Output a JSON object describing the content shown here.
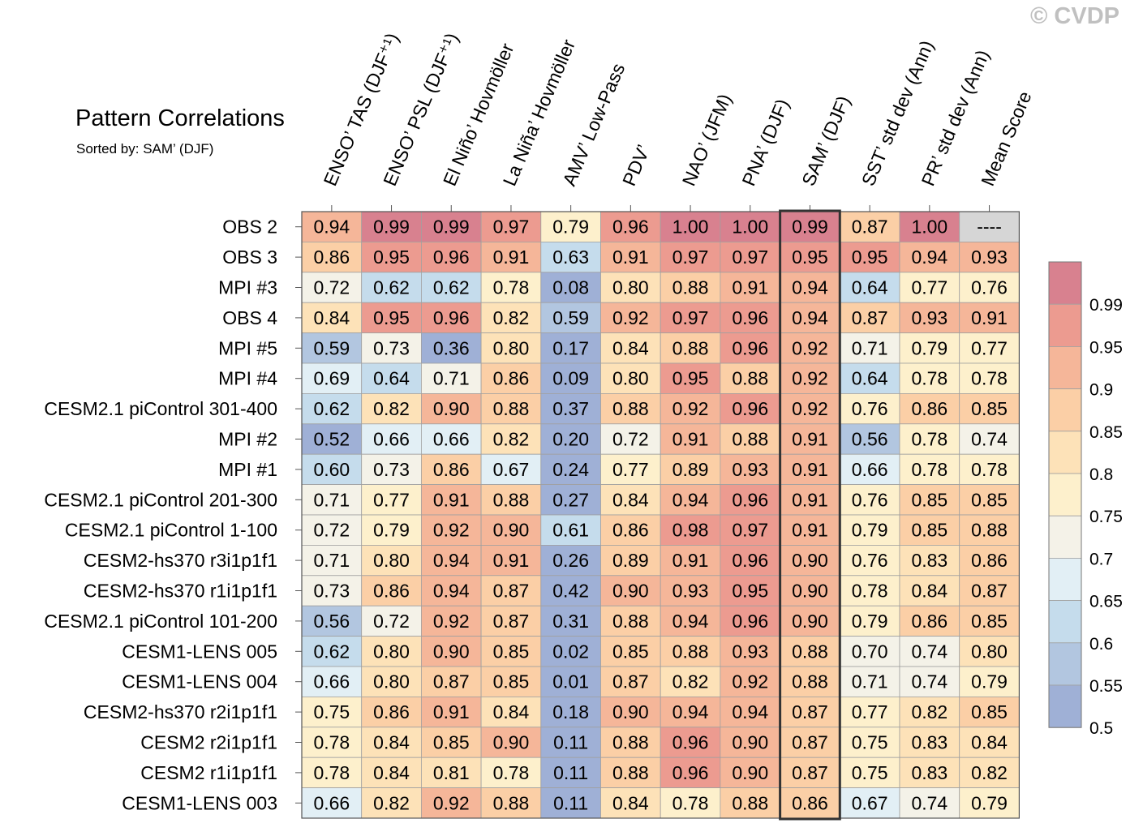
{
  "title": "Pattern Correlations",
  "subtitle": "Sorted by: SAM’ (DJF)",
  "watermark": "© CVDP",
  "chart_data": {
    "type": "heatmap",
    "title": "Pattern Correlations",
    "subtitle": "Sorted by: SAM’ (DJF)",
    "sorted_by_column": 8,
    "columns": [
      "ENSO’ TAS (DJF⁺¹)",
      "ENSO’ PSL (DJF⁺¹)",
      "El Niño’ Hovmöller",
      "La Niña’ Hovmöller",
      "AMV’ Low-Pass",
      "PDV’",
      "NAO’ (JFM)",
      "PNA’ (DJF)",
      "SAM’ (DJF)",
      "SST’ std dev (Ann)",
      "PR’ std dev (Ann)",
      "Mean Score"
    ],
    "rows": [
      "OBS 2",
      "OBS 3",
      "MPI #3",
      "OBS 4",
      "MPI #5",
      "MPI #4",
      "CESM2.1 piControl 301-400",
      "MPI #2",
      "MPI #1",
      "CESM2.1 piControl 201-300",
      "CESM2.1 piControl 1-100",
      "CESM2-hs370 r3i1p1f1",
      "CESM2-hs370 r1i1p1f1",
      "CESM2.1 piControl 101-200",
      "CESM1-LENS 005",
      "CESM1-LENS 004",
      "CESM2-hs370 r2i1p1f1",
      "CESM2 r2i1p1f1",
      "CESM2 r1i1p1f1",
      "CESM1-LENS 003"
    ],
    "values": [
      [
        "0.94",
        "0.99",
        "0.99",
        "0.97",
        "0.79",
        "0.96",
        "1.00",
        "1.00",
        "0.99",
        "0.87",
        "1.00",
        "----"
      ],
      [
        "0.86",
        "0.95",
        "0.96",
        "0.91",
        "0.63",
        "0.91",
        "0.97",
        "0.97",
        "0.95",
        "0.95",
        "0.94",
        "0.93"
      ],
      [
        "0.72",
        "0.62",
        "0.62",
        "0.78",
        "0.08",
        "0.80",
        "0.88",
        "0.91",
        "0.94",
        "0.64",
        "0.77",
        "0.76"
      ],
      [
        "0.84",
        "0.95",
        "0.96",
        "0.82",
        "0.59",
        "0.92",
        "0.97",
        "0.96",
        "0.94",
        "0.87",
        "0.93",
        "0.91"
      ],
      [
        "0.59",
        "0.73",
        "0.36",
        "0.80",
        "0.17",
        "0.84",
        "0.88",
        "0.96",
        "0.92",
        "0.71",
        "0.79",
        "0.77"
      ],
      [
        "0.69",
        "0.64",
        "0.71",
        "0.86",
        "0.09",
        "0.80",
        "0.95",
        "0.88",
        "0.92",
        "0.64",
        "0.78",
        "0.78"
      ],
      [
        "0.62",
        "0.82",
        "0.90",
        "0.88",
        "0.37",
        "0.88",
        "0.92",
        "0.96",
        "0.92",
        "0.76",
        "0.86",
        "0.85"
      ],
      [
        "0.52",
        "0.66",
        "0.66",
        "0.82",
        "0.20",
        "0.72",
        "0.91",
        "0.88",
        "0.91",
        "0.56",
        "0.78",
        "0.74"
      ],
      [
        "0.60",
        "0.73",
        "0.86",
        "0.67",
        "0.24",
        "0.77",
        "0.89",
        "0.93",
        "0.91",
        "0.66",
        "0.78",
        "0.78"
      ],
      [
        "0.71",
        "0.77",
        "0.91",
        "0.88",
        "0.27",
        "0.84",
        "0.94",
        "0.96",
        "0.91",
        "0.76",
        "0.85",
        "0.85"
      ],
      [
        "0.72",
        "0.79",
        "0.92",
        "0.90",
        "0.61",
        "0.86",
        "0.98",
        "0.97",
        "0.91",
        "0.79",
        "0.85",
        "0.88"
      ],
      [
        "0.71",
        "0.80",
        "0.94",
        "0.91",
        "0.26",
        "0.89",
        "0.91",
        "0.96",
        "0.90",
        "0.76",
        "0.83",
        "0.86"
      ],
      [
        "0.73",
        "0.86",
        "0.94",
        "0.87",
        "0.42",
        "0.90",
        "0.93",
        "0.95",
        "0.90",
        "0.78",
        "0.84",
        "0.87"
      ],
      [
        "0.56",
        "0.72",
        "0.92",
        "0.87",
        "0.31",
        "0.88",
        "0.94",
        "0.96",
        "0.90",
        "0.79",
        "0.86",
        "0.85"
      ],
      [
        "0.62",
        "0.80",
        "0.90",
        "0.85",
        "0.02",
        "0.85",
        "0.88",
        "0.93",
        "0.88",
        "0.70",
        "0.74",
        "0.80"
      ],
      [
        "0.66",
        "0.80",
        "0.87",
        "0.85",
        "0.01",
        "0.87",
        "0.82",
        "0.92",
        "0.88",
        "0.71",
        "0.74",
        "0.79"
      ],
      [
        "0.75",
        "0.86",
        "0.91",
        "0.84",
        "0.18",
        "0.90",
        "0.94",
        "0.94",
        "0.87",
        "0.77",
        "0.82",
        "0.85"
      ],
      [
        "0.78",
        "0.84",
        "0.85",
        "0.90",
        "0.11",
        "0.88",
        "0.96",
        "0.90",
        "0.87",
        "0.75",
        "0.83",
        "0.84"
      ],
      [
        "0.78",
        "0.84",
        "0.81",
        "0.78",
        "0.11",
        "0.88",
        "0.96",
        "0.90",
        "0.87",
        "0.75",
        "0.83",
        "0.82"
      ],
      [
        "0.66",
        "0.82",
        "0.92",
        "0.88",
        "0.11",
        "0.84",
        "0.78",
        "0.88",
        "0.86",
        "0.67",
        "0.74",
        "0.79"
      ]
    ],
    "missing_value_text": "----",
    "missing_color": "#d6d6d6",
    "colorbar": {
      "levels": [
        0.5,
        0.55,
        0.6,
        0.65,
        0.7,
        0.75,
        0.8,
        0.85,
        0.9,
        0.95,
        0.99
      ],
      "tick_labels": [
        "0.5",
        "0.55",
        "0.6",
        "0.65",
        "0.7",
        "0.75",
        "0.8",
        "0.85",
        "0.9",
        "0.95",
        "0.99"
      ],
      "colors": [
        "#9fb0d6",
        "#b2c6e0",
        "#c5dcec",
        "#e2eff5",
        "#f4f2e8",
        "#fdf0cc",
        "#fde2b8",
        "#fbcfa6",
        "#f5b699",
        "#ec9b90",
        "#d8818f"
      ]
    }
  }
}
